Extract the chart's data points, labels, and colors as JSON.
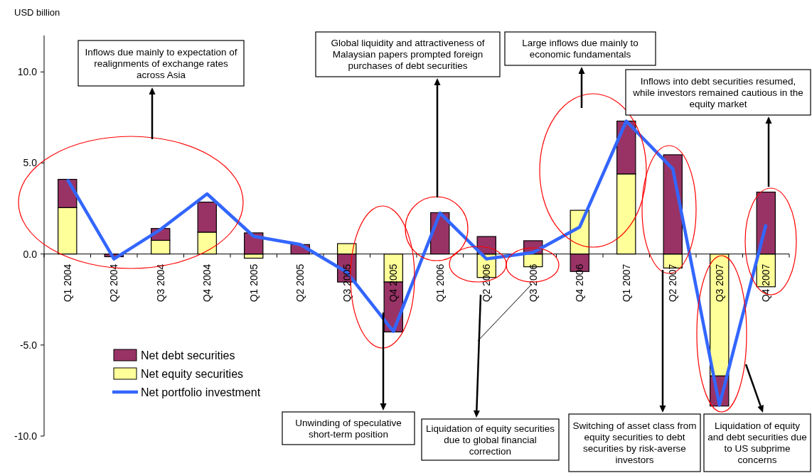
{
  "chart_data": {
    "type": "bar",
    "stacked": true,
    "ylabel": "USD billion",
    "categories": [
      "Q1 2004",
      "Q2 2004",
      "Q3 2004",
      "Q4 2004",
      "Q1 2005",
      "Q2 2005",
      "Q3 2005",
      "Q4 2005",
      "Q1 2006",
      "Q2 2006",
      "Q3 2006",
      "Q4 2006",
      "Q1 2007",
      "Q2 2007",
      "Q3 2007",
      "Q4 2007"
    ],
    "series": [
      {
        "name": "Net equity securities",
        "color": "#ffff99",
        "values": [
          2.55,
          0,
          0.75,
          1.2,
          -0.23,
          0,
          0.57,
          -1.54,
          0,
          -1.29,
          -0.7,
          2.4,
          4.4,
          -0.77,
          -6.7,
          -1.8
        ]
      },
      {
        "name": "Net debt securities",
        "color": "#993366",
        "values": [
          1.55,
          -0.15,
          0.65,
          1.65,
          1.16,
          0.52,
          -1.54,
          -2.74,
          2.27,
          0.96,
          0.73,
          -0.96,
          2.9,
          5.45,
          -1.65,
          3.4
        ]
      },
      {
        "name": "Net portfolio investment",
        "type": "line",
        "color": "#3366ff",
        "values": [
          4.1,
          -0.27,
          1.35,
          3.3,
          0.97,
          0.52,
          -1.0,
          -4.25,
          2.25,
          -0.27,
          0.08,
          1.48,
          7.3,
          4.67,
          -8.3,
          1.62
        ]
      }
    ],
    "ylim": [
      -10,
      12
    ],
    "yticks": [
      {
        "value": -10,
        "label": "-10.0"
      },
      {
        "value": -5,
        "label": "-5.0"
      },
      {
        "value": 0,
        "label": "0.0"
      },
      {
        "value": 5,
        "label": "5.0"
      },
      {
        "value": 10,
        "label": "10.0"
      }
    ],
    "grid": false,
    "legend": "bottom left",
    "marker": "none",
    "line_style": "solid",
    "annotations": [
      "Inflows due mainly to expectation of realignments of exchange rates across Asia",
      "Global liquidity and attractiveness of Malaysian papers prompted foreign purchases of debt securities",
      "Large inflows due mainly to economic fundamentals",
      "Inflows into debt securities resumed, while investors remained cautious in the equity market",
      "Unwinding of speculative short-term position",
      "Liquidation of equity securities due to global financial correction",
      "Switching of asset class from equity securities to debt securities by risk-averse investors",
      "Liquidation of equity and debt securities due to US subprime concerns"
    ]
  }
}
